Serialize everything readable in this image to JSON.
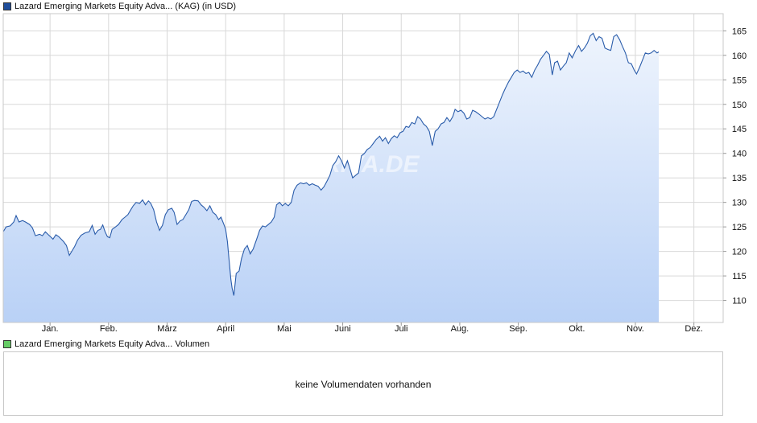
{
  "price_legend": {
    "label": "Lazard Emerging Markets Equity Adva... (KAG)  (in USD)",
    "color": "#1f4e9b"
  },
  "volume_legend": {
    "label": "Lazard Emerging Markets Equity Adva... Volumen",
    "color": "#66cc66"
  },
  "volume_panel": {
    "message": "keine Volumendaten vorhanden"
  },
  "watermark": "ARIVA.DE",
  "colors": {
    "line": "#2a5caa",
    "area_top": "#eef4fd",
    "area_bottom": "#b9d1f6",
    "grid": "#d8d8d8"
  },
  "chart_data": {
    "type": "area",
    "title": "",
    "xlabel": "",
    "ylabel": "",
    "ylim": [
      105.5,
      168.5
    ],
    "xlim": [
      0,
      12.3
    ],
    "yticks": [
      110,
      115,
      120,
      125,
      130,
      135,
      140,
      145,
      150,
      155,
      160,
      165
    ],
    "xticks": [
      {
        "label": "Jan.",
        "x": 0.8
      },
      {
        "label": "Feb.",
        "x": 1.8
      },
      {
        "label": "März",
        "x": 2.8
      },
      {
        "label": "April",
        "x": 3.8
      },
      {
        "label": "Mai",
        "x": 4.8
      },
      {
        "label": "Juni",
        "x": 5.8
      },
      {
        "label": "Juli",
        "x": 6.8
      },
      {
        "label": "Aug.",
        "x": 7.8
      },
      {
        "label": "Sep.",
        "x": 8.8
      },
      {
        "label": "Okt.",
        "x": 9.8
      },
      {
        "label": "Nov.",
        "x": 10.8
      },
      {
        "label": "Dez.",
        "x": 11.8
      }
    ],
    "grid": true,
    "series": [
      {
        "values": [
          [
            0.0,
            124.0
          ],
          [
            0.05,
            125.0
          ],
          [
            0.12,
            125.2
          ],
          [
            0.18,
            126.0
          ],
          [
            0.22,
            127.3
          ],
          [
            0.27,
            126.0
          ],
          [
            0.33,
            126.3
          ],
          [
            0.38,
            126.0
          ],
          [
            0.45,
            125.5
          ],
          [
            0.5,
            124.8
          ],
          [
            0.55,
            123.2
          ],
          [
            0.62,
            123.5
          ],
          [
            0.67,
            123.2
          ],
          [
            0.72,
            124.0
          ],
          [
            0.78,
            123.3
          ],
          [
            0.85,
            122.5
          ],
          [
            0.9,
            123.4
          ],
          [
            0.95,
            123.0
          ],
          [
            1.03,
            122.0
          ],
          [
            1.08,
            121.2
          ],
          [
            1.13,
            119.2
          ],
          [
            1.18,
            120.2
          ],
          [
            1.22,
            121.0
          ],
          [
            1.27,
            122.3
          ],
          [
            1.33,
            123.3
          ],
          [
            1.4,
            123.8
          ],
          [
            1.47,
            124.0
          ],
          [
            1.52,
            125.3
          ],
          [
            1.57,
            123.5
          ],
          [
            1.62,
            124.3
          ],
          [
            1.66,
            124.5
          ],
          [
            1.7,
            125.4
          ],
          [
            1.74,
            124.0
          ],
          [
            1.78,
            123.0
          ],
          [
            1.82,
            122.8
          ],
          [
            1.86,
            124.5
          ],
          [
            1.92,
            125.0
          ],
          [
            1.97,
            125.5
          ],
          [
            2.03,
            126.5
          ],
          [
            2.08,
            127.0
          ],
          [
            2.13,
            127.5
          ],
          [
            2.18,
            128.5
          ],
          [
            2.22,
            129.3
          ],
          [
            2.27,
            130.0
          ],
          [
            2.33,
            129.8
          ],
          [
            2.38,
            130.5
          ],
          [
            2.43,
            129.5
          ],
          [
            2.48,
            130.3
          ],
          [
            2.52,
            129.8
          ],
          [
            2.57,
            128.5
          ],
          [
            2.62,
            126.0
          ],
          [
            2.67,
            124.3
          ],
          [
            2.72,
            125.3
          ],
          [
            2.77,
            127.5
          ],
          [
            2.82,
            128.5
          ],
          [
            2.88,
            128.8
          ],
          [
            2.92,
            128.0
          ],
          [
            2.97,
            125.5
          ],
          [
            3.02,
            126.2
          ],
          [
            3.07,
            126.5
          ],
          [
            3.12,
            127.5
          ],
          [
            3.17,
            128.5
          ],
          [
            3.22,
            130.2
          ],
          [
            3.27,
            130.4
          ],
          [
            3.33,
            130.3
          ],
          [
            3.38,
            129.5
          ],
          [
            3.43,
            129.0
          ],
          [
            3.48,
            128.3
          ],
          [
            3.53,
            129.3
          ],
          [
            3.58,
            128.0
          ],
          [
            3.63,
            127.5
          ],
          [
            3.68,
            126.5
          ],
          [
            3.72,
            127.0
          ],
          [
            3.77,
            125.5
          ],
          [
            3.8,
            124.5
          ],
          [
            3.83,
            122.0
          ],
          [
            3.86,
            118.0
          ],
          [
            3.89,
            114.3
          ],
          [
            3.91,
            112.5
          ],
          [
            3.94,
            111.0
          ],
          [
            3.98,
            115.5
          ],
          [
            4.03,
            116.0
          ],
          [
            4.07,
            118.5
          ],
          [
            4.12,
            120.5
          ],
          [
            4.17,
            121.2
          ],
          [
            4.22,
            119.5
          ],
          [
            4.27,
            120.5
          ],
          [
            4.33,
            122.5
          ],
          [
            4.38,
            124.3
          ],
          [
            4.43,
            125.2
          ],
          [
            4.48,
            125.0
          ],
          [
            4.53,
            125.5
          ],
          [
            4.58,
            126.0
          ],
          [
            4.63,
            127.0
          ],
          [
            4.67,
            129.5
          ],
          [
            4.72,
            130.0
          ],
          [
            4.77,
            129.3
          ],
          [
            4.82,
            129.8
          ],
          [
            4.87,
            129.3
          ],
          [
            4.92,
            130.0
          ],
          [
            4.97,
            132.5
          ],
          [
            5.02,
            133.5
          ],
          [
            5.08,
            134.0
          ],
          [
            5.13,
            133.8
          ],
          [
            5.18,
            134.0
          ],
          [
            5.23,
            133.5
          ],
          [
            5.28,
            133.8
          ],
          [
            5.33,
            133.5
          ],
          [
            5.38,
            133.3
          ],
          [
            5.43,
            132.5
          ],
          [
            5.48,
            133.2
          ],
          [
            5.53,
            134.3
          ],
          [
            5.58,
            135.5
          ],
          [
            5.63,
            137.5
          ],
          [
            5.68,
            138.3
          ],
          [
            5.73,
            139.5
          ],
          [
            5.78,
            138.5
          ],
          [
            5.83,
            137.0
          ],
          [
            5.88,
            138.5
          ],
          [
            5.92,
            137.0
          ],
          [
            5.97,
            135.0
          ],
          [
            6.02,
            135.5
          ],
          [
            6.07,
            136.0
          ],
          [
            6.12,
            139.5
          ],
          [
            6.17,
            140.0
          ],
          [
            6.22,
            140.8
          ],
          [
            6.27,
            141.2
          ],
          [
            6.32,
            142.0
          ],
          [
            6.37,
            142.8
          ],
          [
            6.43,
            143.5
          ],
          [
            6.48,
            142.5
          ],
          [
            6.53,
            143.2
          ],
          [
            6.58,
            142.0
          ],
          [
            6.63,
            143.0
          ],
          [
            6.68,
            143.6
          ],
          [
            6.73,
            143.2
          ],
          [
            6.78,
            144.2
          ],
          [
            6.83,
            144.5
          ],
          [
            6.88,
            145.5
          ],
          [
            6.93,
            145.3
          ],
          [
            6.98,
            146.3
          ],
          [
            7.03,
            146.0
          ],
          [
            7.08,
            147.5
          ],
          [
            7.13,
            147.0
          ],
          [
            7.18,
            146.0
          ],
          [
            7.23,
            145.5
          ],
          [
            7.28,
            144.5
          ],
          [
            7.33,
            141.6
          ],
          [
            7.38,
            144.5
          ],
          [
            7.43,
            145.0
          ],
          [
            7.48,
            146.0
          ],
          [
            7.53,
            146.3
          ],
          [
            7.58,
            147.3
          ],
          [
            7.63,
            146.5
          ],
          [
            7.68,
            147.5
          ],
          [
            7.72,
            149.0
          ],
          [
            7.77,
            148.5
          ],
          [
            7.82,
            148.8
          ],
          [
            7.87,
            148.2
          ],
          [
            7.92,
            147.0
          ],
          [
            7.97,
            147.3
          ],
          [
            8.02,
            148.8
          ],
          [
            8.07,
            148.5
          ],
          [
            8.13,
            148.0
          ],
          [
            8.18,
            147.5
          ],
          [
            8.23,
            147.0
          ],
          [
            8.28,
            147.3
          ],
          [
            8.33,
            147.0
          ],
          [
            8.38,
            147.5
          ],
          [
            8.43,
            149.0
          ],
          [
            8.48,
            150.5
          ],
          [
            8.53,
            152.0
          ],
          [
            8.58,
            153.3
          ],
          [
            8.63,
            154.5
          ],
          [
            8.68,
            155.5
          ],
          [
            8.73,
            156.5
          ],
          [
            8.78,
            157.0
          ],
          [
            8.83,
            156.5
          ],
          [
            8.88,
            156.8
          ],
          [
            8.93,
            156.3
          ],
          [
            8.98,
            156.5
          ],
          [
            9.03,
            155.5
          ],
          [
            9.08,
            157.0
          ],
          [
            9.13,
            158.0
          ],
          [
            9.18,
            159.2
          ],
          [
            9.23,
            160.0
          ],
          [
            9.28,
            160.8
          ],
          [
            9.33,
            160.2
          ],
          [
            9.38,
            156.0
          ],
          [
            9.42,
            158.5
          ],
          [
            9.47,
            158.8
          ],
          [
            9.52,
            157.0
          ],
          [
            9.57,
            157.8
          ],
          [
            9.62,
            158.5
          ],
          [
            9.67,
            160.5
          ],
          [
            9.72,
            159.5
          ],
          [
            9.78,
            161.0
          ],
          [
            9.83,
            162.0
          ],
          [
            9.88,
            160.8
          ],
          [
            9.93,
            161.5
          ],
          [
            9.98,
            162.5
          ],
          [
            10.03,
            164.0
          ],
          [
            10.08,
            164.5
          ],
          [
            10.13,
            163.0
          ],
          [
            10.18,
            163.8
          ],
          [
            10.23,
            163.5
          ],
          [
            10.28,
            161.5
          ],
          [
            10.33,
            161.2
          ],
          [
            10.38,
            161.0
          ],
          [
            10.43,
            163.8
          ],
          [
            10.48,
            164.2
          ],
          [
            10.53,
            163.2
          ],
          [
            10.58,
            161.8
          ],
          [
            10.63,
            160.5
          ],
          [
            10.68,
            158.5
          ],
          [
            10.73,
            158.3
          ],
          [
            10.78,
            157.0
          ],
          [
            10.82,
            156.2
          ],
          [
            10.87,
            157.5
          ],
          [
            10.92,
            159.0
          ],
          [
            10.97,
            160.5
          ],
          [
            11.02,
            160.3
          ],
          [
            11.07,
            160.5
          ],
          [
            11.12,
            161.0
          ],
          [
            11.17,
            160.5
          ],
          [
            11.2,
            160.7
          ]
        ]
      }
    ]
  }
}
